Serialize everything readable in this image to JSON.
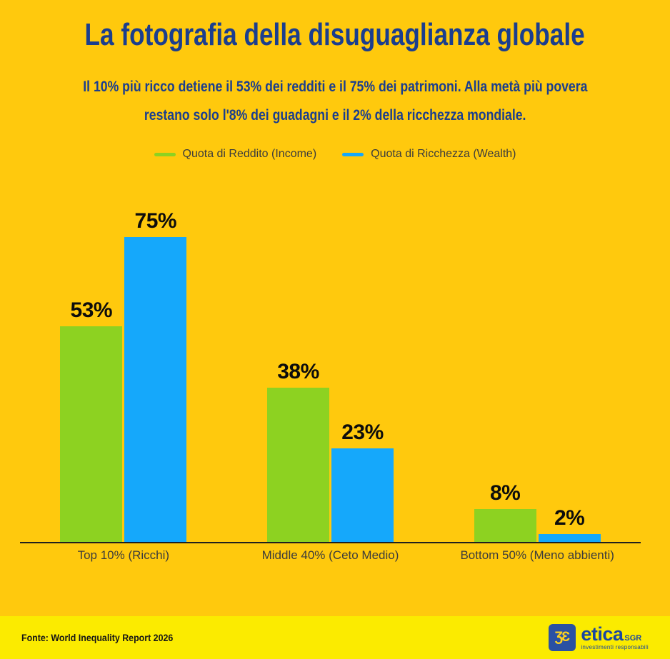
{
  "page": {
    "title": "La fotografia della disuguaglianza globale",
    "subtitle_line1": "Il 10% più ricco detiene il 53% dei redditi e il 75% dei patrimoni. Alla metà più povera",
    "subtitle_line2": "restano solo l'8% dei guadagni e il 2% della ricchezza mondiale."
  },
  "colors": {
    "background": "#FFC90D",
    "footer_background": "#FBEB00",
    "title_navy": "#1B3E8E",
    "income_green": "#8DD221",
    "wealth_blue": "#15A8FB",
    "value_label": "#0D0D0D",
    "axis_line": "#1F1F1F",
    "logo_blue": "#2A51A3",
    "logo_yellow": "#FFD21E"
  },
  "chart_data": {
    "type": "bar",
    "categories": [
      "Top 10% (Ricchi)",
      "Middle 40% (Ceto Medio)",
      "Bottom 50% (Meno abbienti)"
    ],
    "series": [
      {
        "name": "Quota di Reddito (Income)",
        "color": "#8DD221",
        "values": [
          53,
          38,
          8
        ]
      },
      {
        "name": "Quota di Ricchezza (Wealth)",
        "color": "#15A8FB",
        "values": [
          75,
          23,
          2
        ]
      }
    ],
    "value_suffix": "%",
    "title": "La fotografia della disuguaglianza globale",
    "xlabel": "",
    "ylabel": "",
    "ylim": [
      0,
      75
    ],
    "grid": false,
    "legend_position": "top",
    "value_labels_shown": true
  },
  "footer": {
    "source": "Fonte: World Inequality Report 2026",
    "logo": {
      "icon_glyph": "ƷƐ",
      "brand": "etica",
      "brand_suffix": "SGR",
      "tagline": "investimenti responsabili"
    }
  }
}
